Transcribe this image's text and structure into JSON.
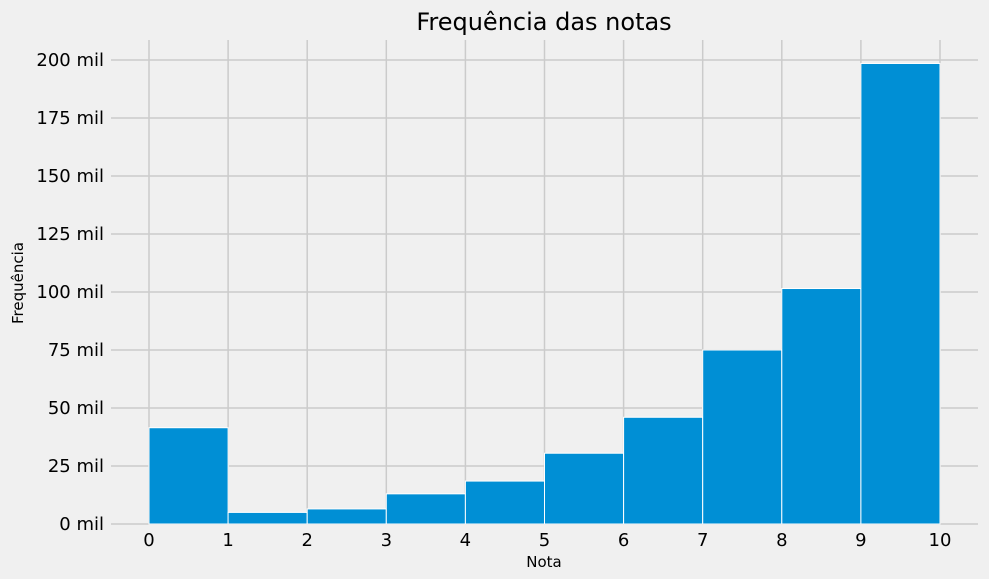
{
  "chart_data": {
    "type": "bar",
    "title": "Frequência das notas",
    "xlabel": "Nota",
    "ylabel": "Frequência",
    "bin_edges": [
      0,
      1,
      2,
      3,
      4,
      5,
      6,
      7,
      8,
      9,
      10
    ],
    "values": [
      41500,
      5000,
      6500,
      13000,
      18500,
      30500,
      46000,
      75000,
      101500,
      198500
    ],
    "xlim": [
      0,
      10
    ],
    "ylim": [
      0,
      200000
    ],
    "x_ticks": [
      0,
      1,
      2,
      3,
      4,
      5,
      6,
      7,
      8,
      9,
      10
    ],
    "x_tick_labels": [
      "0",
      "1",
      "2",
      "3",
      "4",
      "5",
      "6",
      "7",
      "8",
      "9",
      "10"
    ],
    "y_ticks": [
      0,
      25000,
      50000,
      75000,
      100000,
      125000,
      150000,
      175000,
      200000
    ],
    "y_tick_labels": [
      "0 mil",
      "25 mil",
      "50 mil",
      "75 mil",
      "100 mil",
      "125 mil",
      "150 mil",
      "175 mil",
      "200 mil"
    ],
    "grid": true,
    "colors": {
      "bar": "#008fd5",
      "bar_edge": "#ffffff",
      "grid": "#cbcbcb",
      "background": "#f0f0f0"
    }
  }
}
